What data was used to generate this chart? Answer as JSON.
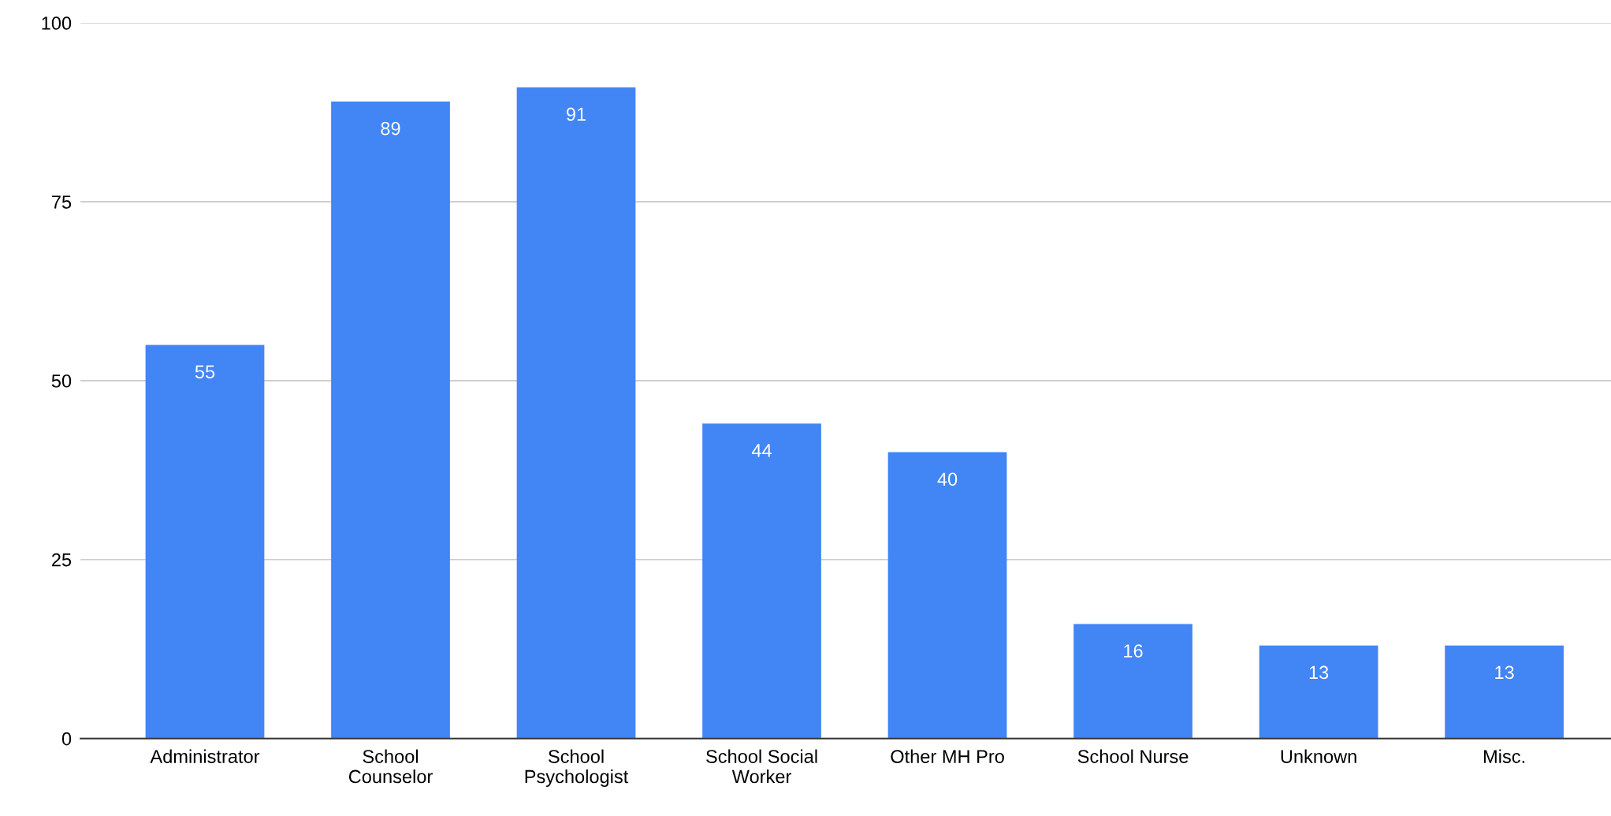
{
  "chart_data": {
    "type": "bar",
    "categories": [
      "Administrator",
      "School\nCounselor",
      "School\nPsychologist",
      "School Social\nWorker",
      "Other MH Pro",
      "School Nurse",
      "Unknown",
      "Misc."
    ],
    "values": [
      55,
      89,
      91,
      44,
      40,
      16,
      13,
      13
    ],
    "color": "#4285f4",
    "ylim": [
      0,
      100
    ],
    "yticks": [
      0,
      25,
      50,
      75,
      100
    ],
    "grid": "y",
    "data_labels": true
  }
}
